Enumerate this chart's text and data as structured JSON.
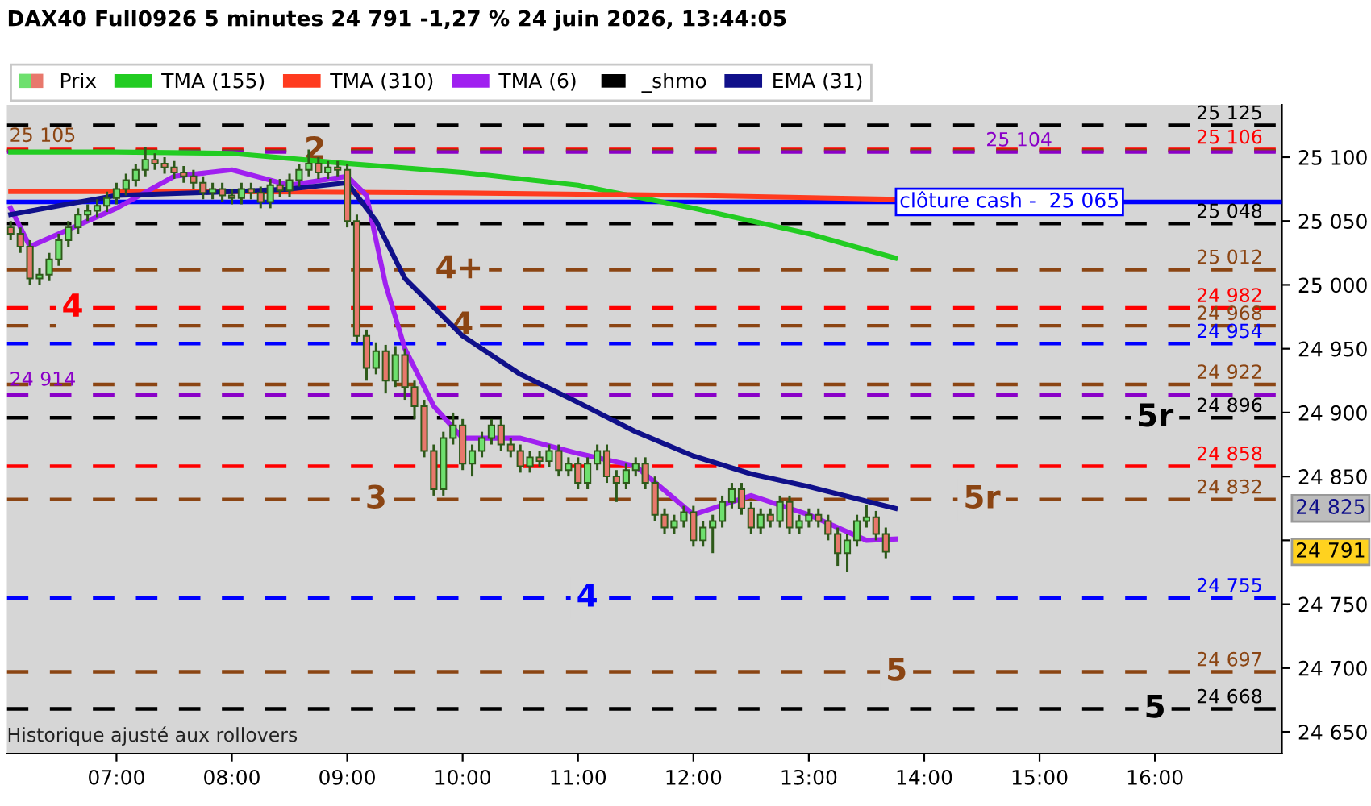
{
  "chart_data": {
    "type": "candlestick",
    "title": "DAX40 Full0926 5 minutes 24 791 -1,27 % 24 juin 2026, 13:44:05",
    "series": [
      {
        "name": "Prix",
        "x": [
          6.083,
          6.167,
          6.25,
          6.333,
          6.417,
          6.5,
          6.583,
          6.667,
          6.75,
          6.833,
          6.917,
          7,
          7.083,
          7.167,
          7.25,
          7.333,
          7.417,
          7.5,
          7.583,
          7.667,
          7.75,
          7.833,
          7.917,
          8,
          8.083,
          8.167,
          8.25,
          8.333,
          8.417,
          8.5,
          8.583,
          8.667,
          8.75,
          8.833,
          8.917,
          9,
          9.083,
          9.167,
          9.25,
          9.333,
          9.417,
          9.5,
          9.583,
          9.667,
          9.75,
          9.833,
          9.917,
          10,
          10.083,
          10.167,
          10.25,
          10.333,
          10.417,
          10.5,
          10.583,
          10.667,
          10.75,
          10.833,
          10.917,
          11,
          11.083,
          11.167,
          11.25,
          11.333,
          11.417,
          11.5,
          11.583,
          11.667,
          11.75,
          11.833,
          11.917,
          12,
          12.083,
          12.167,
          12.25,
          12.333,
          12.417,
          12.5,
          12.583,
          12.667,
          12.75,
          12.833,
          12.917,
          13,
          13.083,
          13.167,
          13.25,
          13.333,
          13.417,
          13.5,
          13.583,
          13.667
        ],
        "ohlc": [
          [
            25045,
            25050,
            25035,
            25040
          ],
          [
            25040,
            25045,
            25025,
            25030
          ],
          [
            25030,
            25035,
            25000,
            25005
          ],
          [
            25005,
            25013,
            25000,
            25008
          ],
          [
            25008,
            25025,
            25003,
            25020
          ],
          [
            25020,
            25040,
            25015,
            25035
          ],
          [
            25035,
            25050,
            25030,
            25045
          ],
          [
            25045,
            25060,
            25040,
            25055
          ],
          [
            25055,
            25063,
            25050,
            25058
          ],
          [
            25058,
            25067,
            25053,
            25062
          ],
          [
            25062,
            25073,
            25057,
            25068
          ],
          [
            25068,
            25080,
            25063,
            25075
          ],
          [
            25075,
            25087,
            25070,
            25082
          ],
          [
            25082,
            25095,
            25077,
            25090
          ],
          [
            25090,
            25108,
            25085,
            25098
          ],
          [
            25098,
            25103,
            25090,
            25095
          ],
          [
            25095,
            25100,
            25087,
            25092
          ],
          [
            25092,
            25097,
            25083,
            25088
          ],
          [
            25088,
            25093,
            25080,
            25085
          ],
          [
            25085,
            25090,
            25075,
            25080
          ],
          [
            25080,
            25085,
            25067,
            25072
          ],
          [
            25072,
            25080,
            25067,
            25075
          ],
          [
            25075,
            25080,
            25065,
            25070
          ],
          [
            25070,
            25075,
            25063,
            25068
          ],
          [
            25068,
            25080,
            25063,
            25075
          ],
          [
            25075,
            25080,
            25067,
            25072
          ],
          [
            25072,
            25077,
            25060,
            25065
          ],
          [
            25065,
            25083,
            25060,
            25078
          ],
          [
            25078,
            25083,
            25069,
            25074
          ],
          [
            25074,
            25087,
            25069,
            25082
          ],
          [
            25082,
            25095,
            25077,
            25090
          ],
          [
            25090,
            25106,
            25085,
            25095
          ],
          [
            25095,
            25100,
            25083,
            25088
          ],
          [
            25088,
            25097,
            25083,
            25092
          ],
          [
            25092,
            25097,
            25085,
            25090
          ],
          [
            25090,
            25095,
            25045,
            25050
          ],
          [
            25050,
            25055,
            24955,
            24960
          ],
          [
            24960,
            24965,
            24925,
            24935
          ],
          [
            24935,
            24955,
            24930,
            24948
          ],
          [
            24948,
            24953,
            24915,
            24925
          ],
          [
            24925,
            24952,
            24920,
            24945
          ],
          [
            24945,
            24950,
            24910,
            24920
          ],
          [
            24920,
            24925,
            24895,
            24905
          ],
          [
            24905,
            24910,
            24865,
            24870
          ],
          [
            24870,
            24875,
            24835,
            24840
          ],
          [
            24840,
            24885,
            24835,
            24880
          ],
          [
            24880,
            24900,
            24875,
            24890
          ],
          [
            24890,
            24895,
            24855,
            24860
          ],
          [
            24860,
            24875,
            24850,
            24870
          ],
          [
            24870,
            24885,
            24865,
            24880
          ],
          [
            24880,
            24895,
            24875,
            24890
          ],
          [
            24890,
            24895,
            24870,
            24875
          ],
          [
            24875,
            24880,
            24865,
            24870
          ],
          [
            24870,
            24875,
            24853,
            24858
          ],
          [
            24858,
            24870,
            24853,
            24865
          ],
          [
            24865,
            24870,
            24857,
            24862
          ],
          [
            24862,
            24875,
            24857,
            24870
          ],
          [
            24870,
            24875,
            24850,
            24855
          ],
          [
            24855,
            24865,
            24850,
            24860
          ],
          [
            24860,
            24865,
            24840,
            24845
          ],
          [
            24845,
            24865,
            24840,
            24860
          ],
          [
            24860,
            24875,
            24855,
            24870
          ],
          [
            24870,
            24875,
            24845,
            24850
          ],
          [
            24850,
            24855,
            24830,
            24845
          ],
          [
            24845,
            24860,
            24840,
            24855
          ],
          [
            24855,
            24865,
            24850,
            24860
          ],
          [
            24860,
            24865,
            24840,
            24845
          ],
          [
            24845,
            24850,
            24815,
            24820
          ],
          [
            24820,
            24825,
            24805,
            24810
          ],
          [
            24810,
            24820,
            24805,
            24815
          ],
          [
            24815,
            24827,
            24810,
            24822
          ],
          [
            24822,
            24827,
            24795,
            24800
          ],
          [
            24800,
            24815,
            24795,
            24810
          ],
          [
            24810,
            24820,
            24790,
            24815
          ],
          [
            24815,
            24835,
            24810,
            24830
          ],
          [
            24830,
            24845,
            24825,
            24840
          ],
          [
            24840,
            24845,
            24820,
            24825
          ],
          [
            24825,
            24830,
            24805,
            24810
          ],
          [
            24810,
            24825,
            24805,
            24820
          ],
          [
            24820,
            24825,
            24810,
            24815
          ],
          [
            24815,
            24835,
            24810,
            24830
          ],
          [
            24830,
            24835,
            24805,
            24810
          ],
          [
            24810,
            24820,
            24805,
            24815
          ],
          [
            24815,
            24825,
            24810,
            24820
          ],
          [
            24820,
            24825,
            24810,
            24815
          ],
          [
            24815,
            24820,
            24800,
            24805
          ],
          [
            24805,
            24810,
            24780,
            24790
          ],
          [
            24790,
            24805,
            24775,
            24800
          ],
          [
            24800,
            24820,
            24795,
            24815
          ],
          [
            24815,
            24828,
            24810,
            24818
          ],
          [
            24818,
            24823,
            24800,
            24805
          ],
          [
            24805,
            24810,
            24786,
            24791
          ]
        ],
        "colors": [
          "#e8786c",
          "#e8786c",
          "#e8786c",
          "#6ee06e",
          "#6ee06e",
          "#6ee06e",
          "#6ee06e",
          "#6ee06e",
          "#6ee06e",
          "#6ee06e",
          "#6ee06e",
          "#6ee06e",
          "#6ee06e",
          "#6ee06e",
          "#6ee06e",
          "#e8786c",
          "#e8786c",
          "#e8786c",
          "#e8786c",
          "#e8786c",
          "#e8786c",
          "#6ee06e",
          "#e8786c",
          "#e8786c",
          "#6ee06e",
          "#e8786c",
          "#e8786c",
          "#6ee06e",
          "#e8786c",
          "#6ee06e",
          "#6ee06e",
          "#6ee06e",
          "#e8786c",
          "#6ee06e",
          "#e8786c",
          "#e8786c",
          "#e8786c",
          "#e8786c",
          "#6ee06e",
          "#e8786c",
          "#6ee06e",
          "#e8786c",
          "#e8786c",
          "#e8786c",
          "#e8786c",
          "#6ee06e",
          "#6ee06e",
          "#e8786c",
          "#6ee06e",
          "#6ee06e",
          "#6ee06e",
          "#e8786c",
          "#e8786c",
          "#e8786c",
          "#6ee06e",
          "#e8786c",
          "#6ee06e",
          "#e8786c",
          "#6ee06e",
          "#e8786c",
          "#6ee06e",
          "#6ee06e",
          "#e8786c",
          "#e8786c",
          "#6ee06e",
          "#6ee06e",
          "#e8786c",
          "#e8786c",
          "#e8786c",
          "#6ee06e",
          "#6ee06e",
          "#e8786c",
          "#6ee06e",
          "#6ee06e",
          "#6ee06e",
          "#6ee06e",
          "#e8786c",
          "#e8786c",
          "#6ee06e",
          "#e8786c",
          "#6ee06e",
          "#e8786c",
          "#6ee06e",
          "#6ee06e",
          "#e8786c",
          "#e8786c",
          "#e8786c",
          "#6ee06e",
          "#6ee06e",
          "#6ee06e",
          "#e8786c",
          "#e8786c"
        ]
      },
      {
        "name": "TMA (155)",
        "type": "line",
        "color": "#22cc22",
        "x": [
          6.083,
          7,
          8,
          9,
          10,
          11,
          12,
          13,
          13.75
        ],
        "values": [
          25104,
          25104,
          25103,
          25095,
          25088,
          25078,
          25060,
          25040,
          25021
        ]
      },
      {
        "name": "TMA (310)",
        "type": "line",
        "color": "#ff3b1f",
        "x": [
          6.083,
          8,
          10,
          12,
          13.75
        ],
        "values": [
          25073,
          25073,
          25072,
          25070,
          25067
        ]
      },
      {
        "name": "TMA (6)",
        "type": "line",
        "color": "#a020f0",
        "x": [
          6.083,
          6.25,
          6.5,
          7,
          7.5,
          8,
          8.5,
          9,
          9.167,
          9.333,
          9.5,
          9.75,
          10,
          10.5,
          11,
          11.5,
          12,
          12.5,
          13,
          13.5,
          13.75
        ],
        "values": [
          25060,
          25030,
          25040,
          25060,
          25085,
          25090,
          25078,
          25085,
          25070,
          25000,
          24950,
          24905,
          24880,
          24880,
          24868,
          24858,
          24820,
          24835,
          24820,
          24800,
          24801
        ]
      },
      {
        "name": "_shmo",
        "type": "line",
        "color": "#000000",
        "line_style": "dashed"
      },
      {
        "name": "EMA (31)",
        "type": "line",
        "color": "#10108a",
        "x": [
          6.083,
          6.5,
          7,
          8,
          8.5,
          9,
          9.25,
          9.5,
          10,
          10.5,
          11,
          11.5,
          12,
          12.5,
          13,
          13.75
        ],
        "values": [
          25055,
          25062,
          25070,
          25073,
          25075,
          25080,
          25050,
          25005,
          24960,
          24930,
          24908,
          24885,
          24866,
          24852,
          24842,
          24825
        ]
      }
    ],
    "ref_lines": [
      {
        "axis": "y",
        "value": 25125,
        "label": "25 125",
        "color": "#000000",
        "line_style": "dashed"
      },
      {
        "axis": "y",
        "value": 25106,
        "label": "25 106",
        "color": "#ff0000",
        "line_style": "dashed"
      },
      {
        "axis": "y",
        "value": 25105,
        "label": "25 105",
        "color": "#8b4513",
        "line_style": "dashed"
      },
      {
        "axis": "y",
        "value": 25104,
        "label": "25 104",
        "color": "#8a00c8",
        "line_style": "dashed"
      },
      {
        "axis": "y",
        "value": 25065,
        "label": "clôture cash -  25 065",
        "color": "#0000ff",
        "line_style": "solid"
      },
      {
        "axis": "y",
        "value": 25048,
        "label": "25 048",
        "color": "#000000",
        "line_style": "dashed"
      },
      {
        "axis": "y",
        "value": 25012,
        "label": "25 012",
        "color": "#8b4513",
        "line_style": "dashed"
      },
      {
        "axis": "y",
        "value": 24982,
        "label": "24 982",
        "color": "#ff0000",
        "line_style": "dashed"
      },
      {
        "axis": "y",
        "value": 24968,
        "label": "24 968",
        "color": "#8b4513",
        "line_style": "dashed"
      },
      {
        "axis": "y",
        "value": 24954,
        "label": "24 954",
        "color": "#0000ff",
        "line_style": "dashed"
      },
      {
        "axis": "y",
        "value": 24922,
        "label": "24 922",
        "color": "#8b4513",
        "line_style": "dashed"
      },
      {
        "axis": "y",
        "value": 24914,
        "label": "24 914",
        "color": "#8a00c8",
        "line_style": "dashed"
      },
      {
        "axis": "y",
        "value": 24896,
        "label": "24 896",
        "color": "#000000",
        "line_style": "dashed"
      },
      {
        "axis": "y",
        "value": 24858,
        "label": "24 858",
        "color": "#ff0000",
        "line_style": "dashed"
      },
      {
        "axis": "y",
        "value": 24832,
        "label": "24 832",
        "color": "#8b4513",
        "line_style": "dashed"
      },
      {
        "axis": "y",
        "value": 24755,
        "label": "24 755",
        "color": "#0000ff",
        "line_style": "dashed"
      },
      {
        "axis": "y",
        "value": 24697,
        "label": "24 697",
        "color": "#8b4513",
        "line_style": "dashed"
      },
      {
        "axis": "y",
        "value": 24668,
        "label": "24 668",
        "color": "#000000",
        "line_style": "dashed"
      }
    ],
    "annotations": [
      {
        "text": "2",
        "x": 8.72,
        "y": 25105
      },
      {
        "text": "4",
        "x": 6.62,
        "y": 24982
      },
      {
        "text": "4+",
        "x": 9.97,
        "y": 25012
      },
      {
        "text": "4",
        "x": 10.0,
        "y": 24968
      },
      {
        "text": "3",
        "x": 9.25,
        "y": 24832
      },
      {
        "text": "4",
        "x": 11.08,
        "y": 24755
      },
      {
        "text": "5r",
        "x": 16.0,
        "y": 24896
      },
      {
        "text": "5r",
        "x": 14.5,
        "y": 24832
      },
      {
        "text": "5",
        "x": 13.76,
        "y": 24697
      },
      {
        "text": "5",
        "x": 16.0,
        "y": 24668
      },
      "24 825",
      "24 791",
      "Historique ajusté aux rollovers"
    ],
    "xlim": [
      6.05,
      17.1
    ],
    "xticks": [
      {
        "value": 7,
        "label": "07:00"
      },
      {
        "value": 8,
        "label": "08:00"
      },
      {
        "value": 9,
        "label": "09:00"
      },
      {
        "value": 10,
        "label": "10:00"
      },
      {
        "value": 11,
        "label": "11:00"
      },
      {
        "value": 12,
        "label": "12:00"
      },
      {
        "value": 13,
        "label": "13:00"
      },
      {
        "value": 14,
        "label": "14:00"
      },
      {
        "value": 15,
        "label": "15:00"
      },
      {
        "value": 16,
        "label": "16:00"
      }
    ],
    "ylim": [
      24633,
      25141
    ],
    "yticks": [
      {
        "value": 24650,
        "label": "24 650"
      },
      {
        "value": 24700,
        "label": "24 700"
      },
      {
        "value": 24750,
        "label": "24 750"
      },
      {
        "value": 24800,
        "label": null
      },
      {
        "value": 24850,
        "label": "24 850"
      },
      {
        "value": 24900,
        "label": "24 900"
      },
      {
        "value": 24950,
        "label": "24 950"
      },
      {
        "value": 25000,
        "label": "25 000"
      },
      {
        "value": 25050,
        "label": "25 050"
      },
      {
        "value": 25100,
        "label": "25 100"
      }
    ],
    "grid": false,
    "legend": "top left"
  }
}
